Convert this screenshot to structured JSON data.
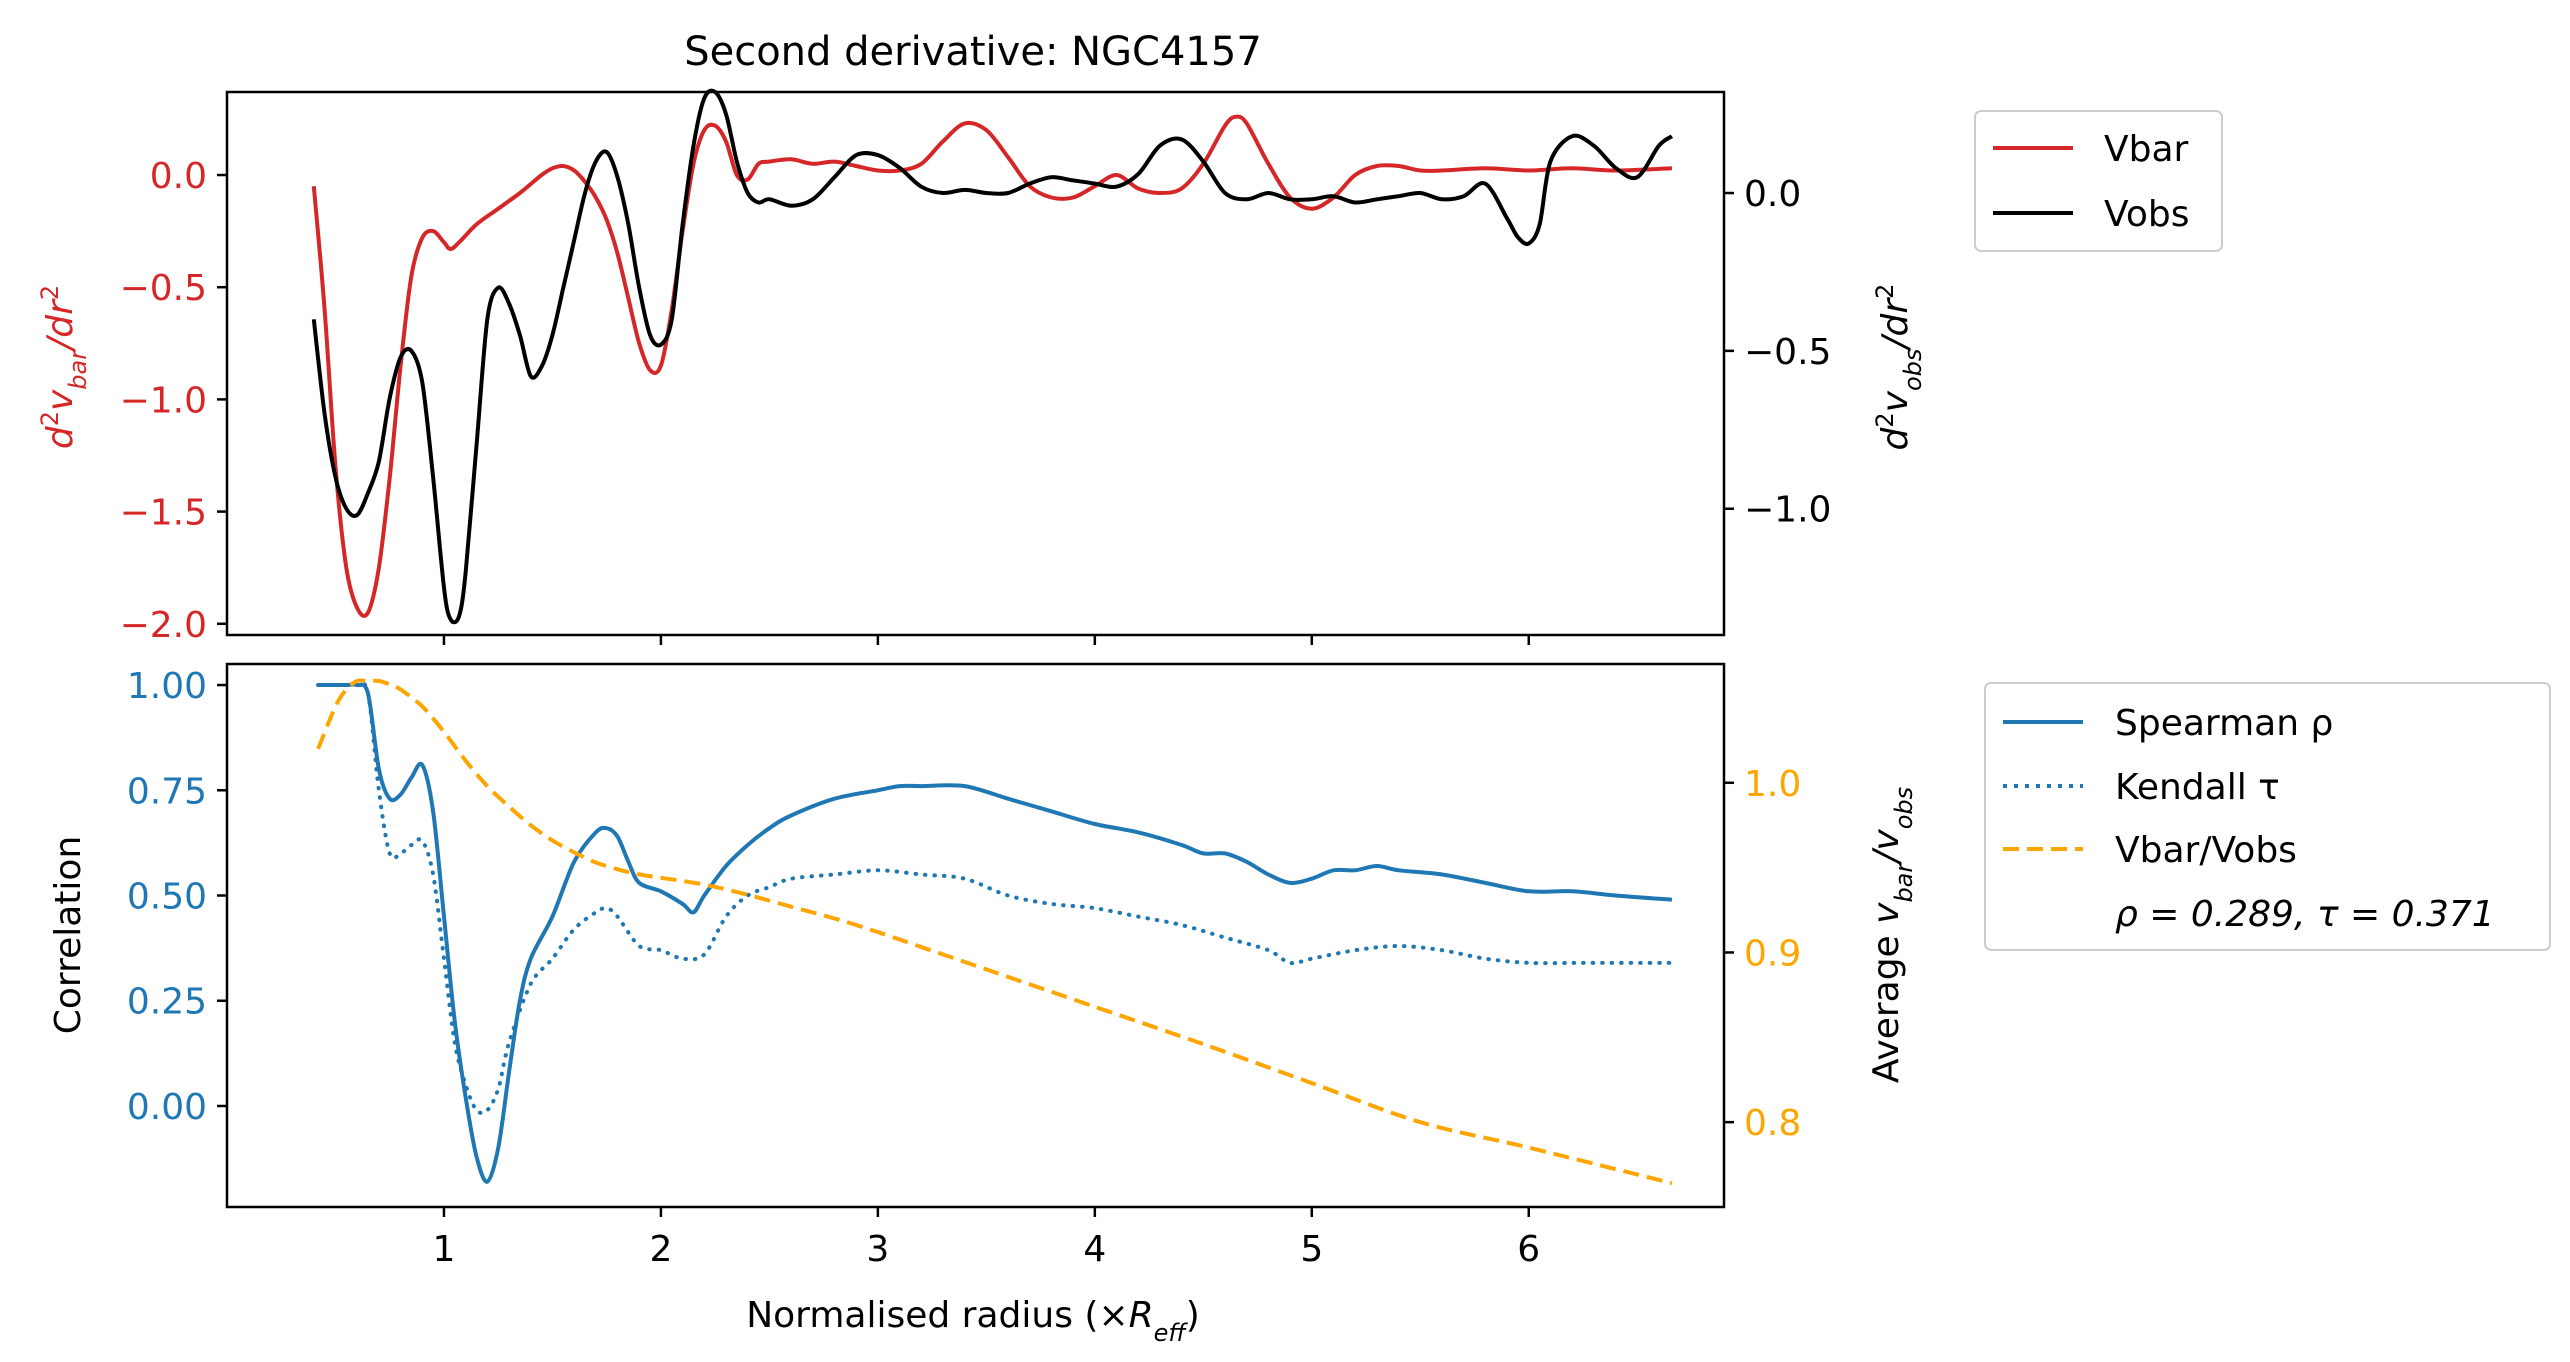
{
  "figure": {
    "title": "Second derivative: NGC4157",
    "xlabel": "Normalised radius (×R_eff)",
    "x_ticks": [
      "1",
      "2",
      "3",
      "4",
      "5",
      "6"
    ],
    "x_tick_values": [
      1,
      2,
      3,
      4,
      5,
      6
    ]
  },
  "colors": {
    "vbar": "#d62728",
    "vobs": "#000000",
    "corr": "#1f77b4",
    "ratio": "#ffa500",
    "axis": "#000000"
  },
  "chart_data": [
    {
      "type": "line",
      "panel": "top",
      "title": "Second derivative: NGC4157",
      "xlim": [
        0.0,
        6.9
      ],
      "left_axis": {
        "label": "d²v_bar/dr²",
        "ylim": [
          -2.05,
          0.37
        ],
        "ticks": [
          0.0,
          -0.5,
          -1.0,
          -1.5,
          -2.0
        ],
        "tick_labels": [
          "0.0",
          "−0.5",
          "−1.0",
          "−1.5",
          "−2.0"
        ],
        "color": "#d62728"
      },
      "right_axis": {
        "label": "d²v_obs/dr²",
        "ylim": [
          -1.4,
          0.32
        ],
        "ticks": [
          0.0,
          -0.5,
          -1.0
        ],
        "tick_labels": [
          "0.0",
          "−0.5",
          "−1.0"
        ],
        "color": "#000000"
      },
      "legend": {
        "placement": "outside upper right",
        "entries": [
          "Vbar",
          "Vobs"
        ]
      },
      "series": [
        {
          "name": "Vbar",
          "axis": "left",
          "color": "#d62728",
          "x": [
            0.4,
            0.45,
            0.5,
            0.55,
            0.6,
            0.65,
            0.7,
            0.75,
            0.8,
            0.85,
            0.9,
            0.95,
            1.0,
            1.03,
            1.07,
            1.15,
            1.25,
            1.35,
            1.45,
            1.5,
            1.55,
            1.6,
            1.65,
            1.7,
            1.75,
            1.8,
            1.85,
            1.9,
            1.95,
            2.0,
            2.05,
            2.1,
            2.15,
            2.2,
            2.25,
            2.3,
            2.35,
            2.4,
            2.45,
            2.5,
            2.6,
            2.7,
            2.8,
            2.9,
            3.0,
            3.1,
            3.2,
            3.3,
            3.4,
            3.5,
            3.6,
            3.7,
            3.8,
            3.9,
            4.0,
            4.1,
            4.2,
            4.3,
            4.4,
            4.5,
            4.6,
            4.65,
            4.7,
            4.8,
            4.9,
            5.0,
            5.1,
            5.2,
            5.3,
            5.4,
            5.5,
            5.6,
            5.8,
            6.0,
            6.2,
            6.4,
            6.66
          ],
          "y": [
            -0.05,
            -0.6,
            -1.3,
            -1.75,
            -1.93,
            -1.95,
            -1.75,
            -1.35,
            -0.85,
            -0.45,
            -0.28,
            -0.25,
            -0.3,
            -0.33,
            -0.3,
            -0.22,
            -0.15,
            -0.08,
            0.0,
            0.03,
            0.04,
            0.02,
            -0.03,
            -0.1,
            -0.2,
            -0.35,
            -0.55,
            -0.75,
            -0.87,
            -0.85,
            -0.6,
            -0.25,
            0.05,
            0.2,
            0.22,
            0.15,
            0.0,
            -0.02,
            0.05,
            0.06,
            0.07,
            0.05,
            0.06,
            0.04,
            0.02,
            0.02,
            0.05,
            0.15,
            0.23,
            0.2,
            0.08,
            -0.05,
            -0.1,
            -0.1,
            -0.05,
            0.0,
            -0.06,
            -0.08,
            -0.06,
            0.05,
            0.22,
            0.26,
            0.23,
            0.05,
            -0.1,
            -0.15,
            -0.1,
            0.0,
            0.04,
            0.04,
            0.02,
            0.02,
            0.03,
            0.02,
            0.03,
            0.02,
            0.03
          ]
        },
        {
          "name": "Vobs",
          "axis": "right",
          "color": "#000000",
          "x": [
            0.4,
            0.45,
            0.5,
            0.55,
            0.6,
            0.65,
            0.7,
            0.75,
            0.8,
            0.85,
            0.9,
            0.95,
            1.0,
            1.03,
            1.07,
            1.1,
            1.15,
            1.2,
            1.25,
            1.3,
            1.35,
            1.4,
            1.45,
            1.5,
            1.55,
            1.6,
            1.65,
            1.7,
            1.75,
            1.8,
            1.85,
            1.9,
            1.95,
            2.0,
            2.05,
            2.1,
            2.15,
            2.2,
            2.25,
            2.3,
            2.35,
            2.4,
            2.45,
            2.5,
            2.6,
            2.7,
            2.8,
            2.9,
            3.0,
            3.1,
            3.2,
            3.3,
            3.4,
            3.5,
            3.6,
            3.7,
            3.8,
            3.9,
            4.0,
            4.1,
            4.2,
            4.3,
            4.4,
            4.5,
            4.6,
            4.7,
            4.8,
            4.9,
            5.0,
            5.1,
            5.2,
            5.3,
            5.4,
            5.5,
            5.6,
            5.7,
            5.8,
            5.9,
            5.95,
            6.0,
            6.05,
            6.1,
            6.2,
            6.3,
            6.4,
            6.5,
            6.6,
            6.66
          ],
          "y": [
            -0.4,
            -0.7,
            -0.9,
            -1.0,
            -1.02,
            -0.95,
            -0.85,
            -0.65,
            -0.52,
            -0.5,
            -0.6,
            -0.9,
            -1.25,
            -1.35,
            -1.34,
            -1.2,
            -0.8,
            -0.4,
            -0.3,
            -0.35,
            -0.45,
            -0.58,
            -0.55,
            -0.45,
            -0.3,
            -0.15,
            0.0,
            0.1,
            0.13,
            0.05,
            -0.1,
            -0.3,
            -0.45,
            -0.48,
            -0.4,
            -0.1,
            0.15,
            0.3,
            0.32,
            0.25,
            0.1,
            0.0,
            -0.03,
            -0.02,
            -0.04,
            -0.02,
            0.05,
            0.12,
            0.12,
            0.08,
            0.02,
            0.0,
            0.01,
            0.0,
            0.0,
            0.03,
            0.05,
            0.04,
            0.03,
            0.02,
            0.06,
            0.15,
            0.17,
            0.1,
            0.0,
            -0.02,
            0.0,
            -0.02,
            -0.02,
            -0.01,
            -0.03,
            -0.02,
            -0.01,
            0.0,
            -0.02,
            -0.01,
            0.03,
            -0.08,
            -0.14,
            -0.16,
            -0.1,
            0.1,
            0.18,
            0.15,
            0.08,
            0.05,
            0.15,
            0.18
          ]
        }
      ]
    },
    {
      "type": "line",
      "panel": "bottom",
      "xlim": [
        0.0,
        6.9
      ],
      "left_axis": {
        "label": "Correlation",
        "ylim": [
          -0.24,
          1.05
        ],
        "ticks": [
          1.0,
          0.75,
          0.5,
          0.25,
          0.0
        ],
        "tick_labels": [
          "1.00",
          "0.75",
          "0.50",
          "0.25",
          "0.00"
        ],
        "color": "#1f77b4"
      },
      "right_axis": {
        "label": "Average v_bar/v_obs",
        "ylim": [
          0.75,
          1.07
        ],
        "ticks": [
          1.0,
          0.9,
          0.8
        ],
        "tick_labels": [
          "1.0",
          "0.9",
          "0.8"
        ],
        "color": "#ffa500"
      },
      "legend": {
        "placement": "outside upper right",
        "entries": [
          "Spearman ρ",
          "Kendall τ",
          "Vbar/Vobs",
          "ρ = 0.289, τ = 0.371"
        ]
      },
      "series": [
        {
          "name": "Spearman ρ",
          "axis": "left",
          "color": "#1f77b4",
          "style": "solid",
          "x": [
            0.42,
            0.5,
            0.55,
            0.6,
            0.65,
            0.7,
            0.75,
            0.8,
            0.85,
            0.9,
            0.95,
            1.0,
            1.05,
            1.1,
            1.15,
            1.2,
            1.25,
            1.3,
            1.35,
            1.4,
            1.5,
            1.6,
            1.7,
            1.75,
            1.8,
            1.85,
            1.9,
            2.0,
            2.1,
            2.15,
            2.2,
            2.3,
            2.4,
            2.5,
            2.6,
            2.8,
            3.0,
            3.1,
            3.2,
            3.4,
            3.6,
            3.8,
            4.0,
            4.2,
            4.4,
            4.5,
            4.6,
            4.7,
            4.8,
            4.9,
            5.0,
            5.1,
            5.2,
            5.3,
            5.4,
            5.6,
            5.8,
            6.0,
            6.2,
            6.4,
            6.66
          ],
          "y": [
            1.0,
            1.0,
            1.0,
            1.0,
            0.98,
            0.8,
            0.73,
            0.74,
            0.78,
            0.81,
            0.7,
            0.45,
            0.2,
            0.02,
            -0.12,
            -0.18,
            -0.1,
            0.08,
            0.25,
            0.35,
            0.45,
            0.58,
            0.65,
            0.66,
            0.64,
            0.58,
            0.53,
            0.51,
            0.48,
            0.46,
            0.5,
            0.57,
            0.62,
            0.66,
            0.69,
            0.73,
            0.75,
            0.76,
            0.76,
            0.76,
            0.73,
            0.7,
            0.67,
            0.65,
            0.62,
            0.6,
            0.6,
            0.58,
            0.55,
            0.53,
            0.54,
            0.56,
            0.56,
            0.57,
            0.56,
            0.55,
            0.53,
            0.51,
            0.51,
            0.5,
            0.49
          ]
        },
        {
          "name": "Kendall τ",
          "axis": "left",
          "color": "#1f77b4",
          "style": "dotted",
          "x": [
            0.42,
            0.5,
            0.55,
            0.6,
            0.65,
            0.7,
            0.75,
            0.8,
            0.85,
            0.9,
            0.95,
            1.0,
            1.05,
            1.1,
            1.15,
            1.2,
            1.25,
            1.3,
            1.4,
            1.5,
            1.6,
            1.7,
            1.75,
            1.8,
            1.9,
            2.0,
            2.1,
            2.2,
            2.3,
            2.4,
            2.5,
            2.6,
            2.8,
            3.0,
            3.2,
            3.4,
            3.6,
            3.8,
            4.0,
            4.2,
            4.4,
            4.6,
            4.8,
            4.9,
            5.0,
            5.2,
            5.4,
            5.6,
            5.8,
            6.0,
            6.2,
            6.4,
            6.66
          ],
          "y": [
            1.0,
            1.0,
            1.0,
            1.0,
            0.98,
            0.75,
            0.6,
            0.6,
            0.62,
            0.63,
            0.55,
            0.35,
            0.15,
            0.05,
            -0.01,
            -0.01,
            0.04,
            0.15,
            0.29,
            0.35,
            0.42,
            0.46,
            0.47,
            0.45,
            0.38,
            0.37,
            0.35,
            0.36,
            0.45,
            0.5,
            0.52,
            0.54,
            0.55,
            0.56,
            0.55,
            0.54,
            0.5,
            0.48,
            0.47,
            0.45,
            0.43,
            0.4,
            0.37,
            0.34,
            0.35,
            0.37,
            0.38,
            0.37,
            0.35,
            0.34,
            0.34,
            0.34,
            0.34
          ]
        },
        {
          "name": "Vbar/Vobs",
          "axis": "right",
          "color": "#ffa500",
          "style": "dashed",
          "x": [
            0.42,
            0.5,
            0.55,
            0.6,
            0.65,
            0.7,
            0.75,
            0.8,
            0.9,
            1.0,
            1.1,
            1.2,
            1.3,
            1.4,
            1.5,
            1.6,
            1.7,
            1.8,
            1.9,
            2.0,
            2.2,
            2.4,
            2.6,
            2.8,
            3.0,
            3.5,
            4.0,
            4.5,
            5.0,
            5.5,
            6.0,
            6.66
          ],
          "y": [
            1.02,
            1.045,
            1.055,
            1.06,
            1.06,
            1.06,
            1.058,
            1.055,
            1.045,
            1.03,
            1.013,
            0.998,
            0.986,
            0.975,
            0.966,
            0.959,
            0.953,
            0.949,
            0.946,
            0.944,
            0.94,
            0.934,
            0.927,
            0.92,
            0.912,
            0.89,
            0.868,
            0.846,
            0.823,
            0.8,
            0.785,
            0.764
          ]
        }
      ],
      "annotation": "ρ = 0.289, τ = 0.371"
    }
  ]
}
